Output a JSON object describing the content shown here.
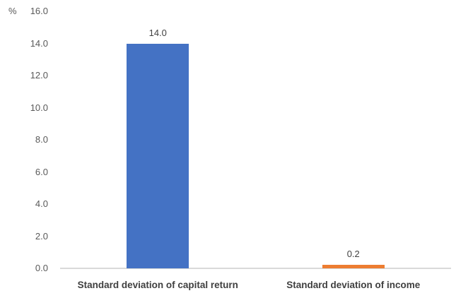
{
  "chart_data": {
    "type": "bar",
    "title": "",
    "xlabel": "",
    "ylabel": "%",
    "unit_label": "%",
    "categories": [
      "Standard deviation of capital return",
      "Standard deviation of income"
    ],
    "values": [
      14.0,
      0.2
    ],
    "data_labels": [
      "14.0",
      "0.2"
    ],
    "bar_colors": [
      "#4472C4",
      "#ED7D31"
    ],
    "ylim": [
      0,
      16
    ],
    "ytick_interval": 2,
    "ytick_labels": [
      "0.0",
      "2.0",
      "4.0",
      "6.0",
      "8.0",
      "10.0",
      "12.0",
      "14.0",
      "16.0"
    ],
    "grid": false,
    "legend": false,
    "colors": {
      "axis_line": "#d9d9d9",
      "tick_text": "#595959",
      "data_label_text": "#404040",
      "category_text": "#3f3f3f"
    }
  }
}
